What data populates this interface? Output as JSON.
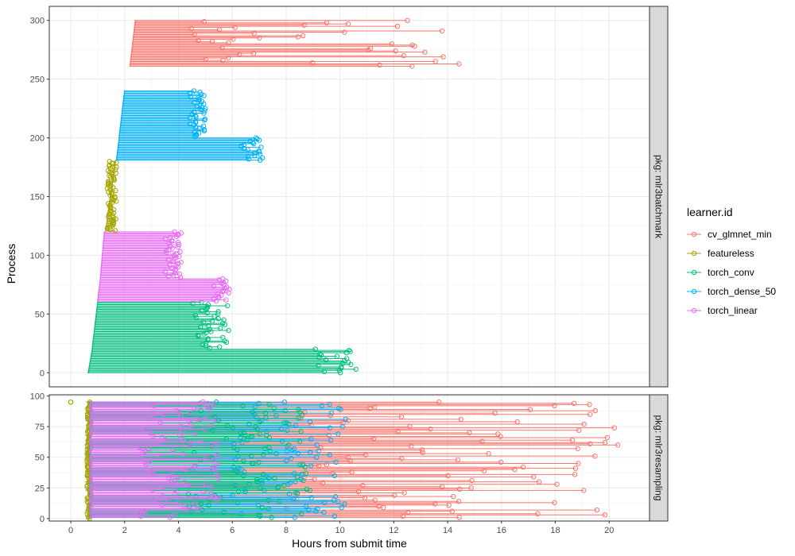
{
  "chart_data": {
    "type": "line",
    "xlabel": "Hours from submit time",
    "ylabel": "Process",
    "xlim": [
      -0.8,
      21.5
    ],
    "x_ticks": [
      0,
      2,
      4,
      6,
      8,
      10,
      12,
      14,
      16,
      18,
      20
    ],
    "legend": {
      "title": "learner.id",
      "position": "right",
      "entries": [
        {
          "name": "cv_glmnet_min",
          "color": "#F8766D"
        },
        {
          "name": "featureless",
          "color": "#A3A500"
        },
        {
          "name": "torch_conv",
          "color": "#00BF7D"
        },
        {
          "name": "torch_dense_50",
          "color": "#00B0F6"
        },
        {
          "name": "torch_linear",
          "color": "#E76BF3"
        }
      ]
    },
    "panels": [
      {
        "strip": "pkg: mlr3batchmark",
        "ylim": [
          -12,
          312
        ],
        "y_ticks": [
          0,
          50,
          100,
          150,
          200,
          250,
          300
        ],
        "groups": [
          {
            "learner": "torch_conv",
            "process_range": [
              0,
              20
            ],
            "start_range": [
              0.65,
              0.8
            ],
            "end_range": [
              8.9,
              10.6
            ]
          },
          {
            "learner": "torch_conv",
            "process_range": [
              21,
              60
            ],
            "start_range": [
              0.8,
              1.0
            ],
            "end_range": [
              4.5,
              5.9
            ]
          },
          {
            "learner": "torch_linear",
            "process_range": [
              61,
              80
            ],
            "start_range": [
              1.0,
              1.1
            ],
            "end_range": [
              5.3,
              6.0
            ]
          },
          {
            "learner": "torch_linear",
            "process_range": [
              81,
              120
            ],
            "start_range": [
              1.1,
              1.25
            ],
            "end_range": [
              3.5,
              4.1
            ]
          },
          {
            "learner": "featureless",
            "process_range": [
              121,
              180
            ],
            "start_range": [
              1.3,
              1.65
            ],
            "end_range": [
              1.35,
              1.7
            ]
          },
          {
            "learner": "torch_dense_50",
            "process_range": [
              181,
              200
            ],
            "start_range": [
              1.7,
              1.8
            ],
            "end_range": [
              6.3,
              7.3
            ]
          },
          {
            "learner": "torch_dense_50",
            "process_range": [
              201,
              240
            ],
            "start_range": [
              1.8,
              2.0
            ],
            "end_range": [
              4.4,
              5.0
            ]
          },
          {
            "learner": "cv_glmnet_min",
            "process_range": [
              261,
              300
            ],
            "start_range": [
              2.2,
              2.4
            ],
            "end_range": [
              4.3,
              15.1
            ]
          }
        ]
      },
      {
        "strip": "pkg: mlr3resampling",
        "ylim": [
          -2,
          101
        ],
        "y_ticks": [
          0,
          25,
          50,
          75,
          100
        ],
        "groups": [
          {
            "learner": "featureless",
            "process_range": [
              0,
              95
            ],
            "start_range": [
              0.55,
              0.7
            ],
            "end_range": [
              0.6,
              0.75
            ]
          },
          {
            "learner": "cv_glmnet_min",
            "process_range": [
              1,
              95
            ],
            "start_range": [
              0.7,
              0.75
            ],
            "end_range": [
              8.0,
              20.5
            ]
          },
          {
            "learner": "torch_dense_50",
            "process_range": [
              1,
              95
            ],
            "start_range": [
              0.7,
              0.75
            ],
            "end_range": [
              6.0,
              10.3
            ]
          },
          {
            "learner": "torch_conv",
            "process_range": [
              1,
              95
            ],
            "start_range": [
              0.7,
              0.75
            ],
            "end_range": [
              4.3,
              8.9
            ]
          },
          {
            "learner": "torch_linear",
            "process_range": [
              1,
              95
            ],
            "start_range": [
              0.7,
              0.75
            ],
            "end_range": [
              2.5,
              5.6
            ]
          }
        ],
        "extra_points": [
          {
            "learner": "featureless",
            "x": 0,
            "y": 95
          }
        ]
      }
    ]
  }
}
